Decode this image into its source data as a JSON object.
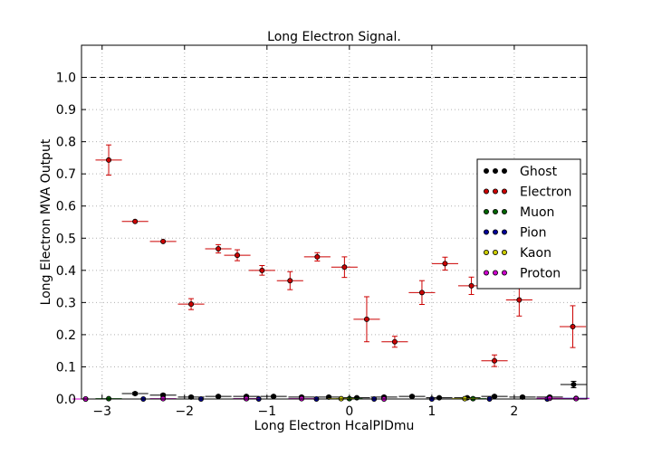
{
  "chart_data": {
    "type": "scatter",
    "title": "Long Electron Signal.",
    "xlabel": "Long Electron HcalPIDmu",
    "ylabel": "Long Electron MVA Output",
    "xlim": [
      -3.25,
      2.88
    ],
    "ylim": [
      0.0,
      1.1
    ],
    "xticks": [
      -3,
      -2,
      -1,
      0,
      1,
      2
    ],
    "xtick_labels": [
      "−3",
      "−2",
      "−1",
      "0",
      "1",
      "2"
    ],
    "yticks": [
      0.0,
      0.1,
      0.2,
      0.3,
      0.4,
      0.5,
      0.6,
      0.7,
      0.8,
      0.9,
      1.0
    ],
    "ytick_labels": [
      "0.0",
      "0.1",
      "0.2",
      "0.3",
      "0.4",
      "0.5",
      "0.6",
      "0.7",
      "0.8",
      "0.9",
      "1.0"
    ],
    "grid": true,
    "reference_line": 1.0,
    "legend_position": "right",
    "x_half_width": 0.16,
    "series": [
      {
        "name": "Ghost",
        "color": "#000000",
        "x": [
          -2.6,
          -2.26,
          -1.92,
          -1.59,
          -1.25,
          -0.92,
          -0.58,
          -0.25,
          0.09,
          0.42,
          0.76,
          1.09,
          1.43,
          1.76,
          2.1,
          2.43,
          2.72
        ],
        "y": [
          0.017,
          0.012,
          0.006,
          0.008,
          0.008,
          0.008,
          0.006,
          0.006,
          0.004,
          0.006,
          0.008,
          0.004,
          0.004,
          0.008,
          0.006,
          0.006,
          0.045
        ],
        "yerr": [
          0.004,
          0.004,
          0.003,
          0.003,
          0.003,
          0.003,
          0.003,
          0.003,
          0.002,
          0.003,
          0.003,
          0.002,
          0.002,
          0.003,
          0.003,
          0.003,
          0.01
        ]
      },
      {
        "name": "Electron",
        "color": "#cc0000",
        "x": [
          -2.92,
          -2.6,
          -2.26,
          -1.92,
          -1.59,
          -1.36,
          -1.06,
          -0.72,
          -0.39,
          -0.06,
          0.21,
          0.55,
          0.88,
          1.16,
          1.48,
          1.76,
          2.06,
          2.71
        ],
        "y": [
          0.743,
          0.552,
          0.49,
          0.295,
          0.467,
          0.447,
          0.4,
          0.368,
          0.442,
          0.41,
          0.248,
          0.178,
          0.331,
          0.421,
          0.352,
          0.119,
          0.308,
          0.225
        ],
        "yerr": [
          0.047,
          0.0,
          0.0,
          0.017,
          0.013,
          0.017,
          0.015,
          0.028,
          0.013,
          0.032,
          0.07,
          0.017,
          0.037,
          0.02,
          0.027,
          0.018,
          0.05,
          0.065
        ]
      },
      {
        "name": "Muon",
        "color": "#006400",
        "x": [
          -2.92,
          -1.25,
          0.0,
          1.5
        ],
        "y": [
          0.001,
          0.001,
          0.001,
          0.001
        ],
        "yerr": [
          0,
          0,
          0,
          0
        ]
      },
      {
        "name": "Pion",
        "color": "#000099",
        "x": [
          -3.2,
          -2.5,
          -1.8,
          -1.1,
          -0.4,
          0.3,
          1.0,
          1.7,
          2.4,
          2.75
        ],
        "y": [
          0.0,
          0.0,
          0.0,
          0.0,
          0.0,
          0.0,
          0.0,
          0.0,
          0.0,
          0.002
        ],
        "yerr": [
          0,
          0,
          0,
          0,
          0,
          0,
          0,
          0,
          0,
          0
        ]
      },
      {
        "name": "Kaon",
        "color": "#cccc00",
        "x": [
          -0.1,
          1.4
        ],
        "y": [
          0.001,
          0.001
        ],
        "yerr": [
          0,
          0
        ]
      },
      {
        "name": "Proton",
        "color": "#cc00cc",
        "x": [
          -3.2,
          -2.26,
          -1.25,
          -0.58,
          0.42,
          2.43,
          2.75
        ],
        "y": [
          0.0,
          0.001,
          0.001,
          0.001,
          0.0,
          0.002,
          0.001
        ],
        "yerr": [
          0,
          0,
          0,
          0,
          0,
          0,
          0
        ]
      }
    ]
  }
}
